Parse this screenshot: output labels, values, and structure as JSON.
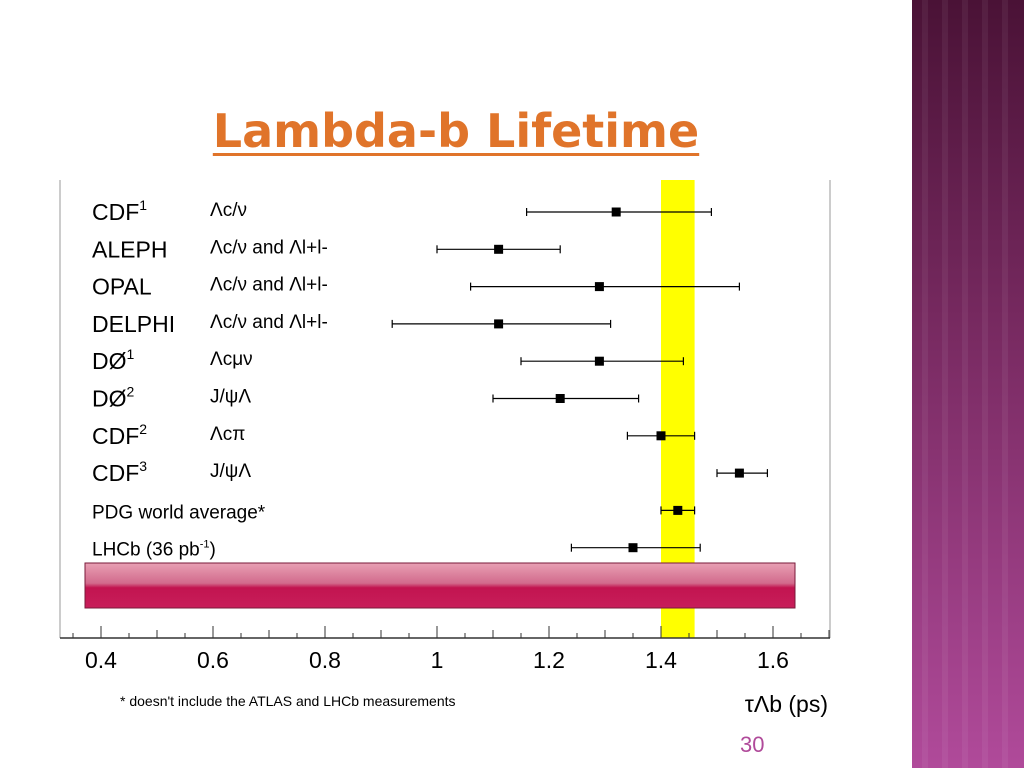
{
  "slide": {
    "title": "Lambda-b Lifetime",
    "page_number": "30",
    "accent_color": "#e0742a",
    "sidebar_color": "#7a2b63"
  },
  "chart_data": {
    "type": "scatter",
    "subtype": "error-bar",
    "xlabel": "τΛb (ps)",
    "xlim": [
      0.3,
      1.7
    ],
    "xticks": [
      0.4,
      0.6,
      0.8,
      1,
      1.2,
      1.4,
      1.6
    ],
    "tick_labels": [
      "0.4",
      "0.6",
      "0.8",
      "1",
      "1.2",
      "1.4",
      "1.6"
    ],
    "footnote": "* doesn't include the ATLAS and LHCb measurements",
    "band": {
      "x_min": 1.4,
      "x_max": 1.46,
      "color": "#ffff00"
    },
    "highlight_bar_color": "#c81e5a",
    "points": [
      {
        "experiment": "CDF",
        "sup": "1",
        "channel": "Λc/ν",
        "value": 1.32,
        "err_low": 0.16,
        "err_high": 0.17
      },
      {
        "experiment": "ALEPH",
        "sup": "",
        "channel": "Λc/ν and Λl+l-",
        "value": 1.11,
        "err_low": 0.11,
        "err_high": 0.11
      },
      {
        "experiment": "OPAL",
        "sup": "",
        "channel": "Λc/ν and Λl+l-",
        "value": 1.29,
        "err_low": 0.23,
        "err_high": 0.25
      },
      {
        "experiment": "DELPHI",
        "sup": "",
        "channel": "Λc/ν and Λl+l-",
        "value": 1.11,
        "err_low": 0.19,
        "err_high": 0.2
      },
      {
        "experiment": "DØ",
        "sup": "1",
        "channel": "Λcμν",
        "value": 1.29,
        "err_low": 0.14,
        "err_high": 0.15
      },
      {
        "experiment": "DØ",
        "sup": "2",
        "channel": "J/ψΛ",
        "value": 1.22,
        "err_low": 0.12,
        "err_high": 0.14
      },
      {
        "experiment": "CDF",
        "sup": "2",
        "channel": "Λcπ",
        "value": 1.4,
        "err_low": 0.06,
        "err_high": 0.06
      },
      {
        "experiment": "CDF",
        "sup": "3",
        "channel": "J/ψΛ",
        "value": 1.54,
        "err_low": 0.04,
        "err_high": 0.05
      },
      {
        "experiment": "PDG world average*",
        "sup": "",
        "channel": "",
        "value": 1.43,
        "err_low": 0.03,
        "err_high": 0.03
      },
      {
        "experiment": "LHCb (36 pb",
        "sup": "-1",
        "suffix": ")",
        "channel": "",
        "value": 1.35,
        "err_low": 0.11,
        "err_high": 0.12
      }
    ]
  }
}
